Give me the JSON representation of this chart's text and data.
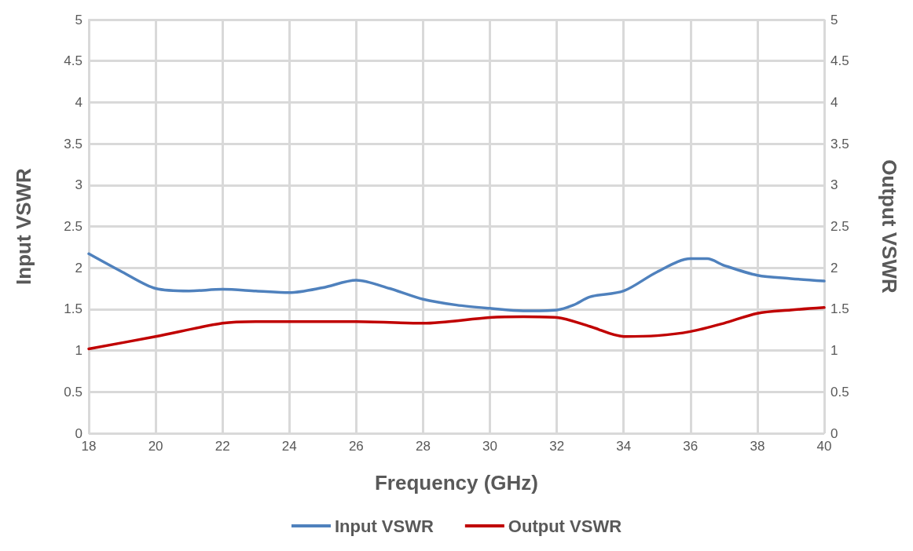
{
  "chart_data": {
    "type": "line",
    "xlabel": "Frequency (GHz)",
    "ylabel": "Input VSWR",
    "y2label": "Output VSWR",
    "series": [
      {
        "name": "Input VSWR",
        "color": "#4f81bd",
        "x": [
          18,
          19,
          20,
          21,
          22,
          23,
          24,
          25,
          26,
          27,
          28,
          29,
          30,
          31,
          32,
          32.5,
          33,
          34,
          35,
          36,
          36.5,
          37,
          38,
          39,
          40
        ],
        "values": [
          2.17,
          1.95,
          1.75,
          1.72,
          1.74,
          1.72,
          1.7,
          1.76,
          1.85,
          1.75,
          1.62,
          1.55,
          1.51,
          1.48,
          1.49,
          1.55,
          1.65,
          1.72,
          1.95,
          2.11,
          2.11,
          2.03,
          1.91,
          1.87,
          1.84
        ]
      },
      {
        "name": "Output VSWR",
        "color": "#c00000",
        "axis": "y2",
        "x": [
          18,
          20,
          22,
          23,
          24,
          26,
          28,
          30,
          31,
          32,
          33,
          34,
          35,
          36,
          37,
          38,
          39,
          40
        ],
        "values": [
          1.02,
          1.17,
          1.33,
          1.35,
          1.35,
          1.35,
          1.33,
          1.4,
          1.41,
          1.4,
          1.29,
          1.17,
          1.18,
          1.23,
          1.33,
          1.45,
          1.49,
          1.52
        ]
      }
    ],
    "xlim": [
      18,
      40
    ],
    "xticks": [
      18,
      20,
      22,
      24,
      26,
      28,
      30,
      32,
      34,
      36,
      38,
      40
    ],
    "ylim": [
      0,
      5
    ],
    "yticks": [
      0,
      0.5,
      1,
      1.5,
      2,
      2.5,
      3,
      3.5,
      4,
      4.5,
      5
    ],
    "y2lim": [
      0,
      5
    ],
    "y2ticks": [
      0,
      0.5,
      1,
      1.5,
      2,
      2.5,
      3,
      3.5,
      4,
      4.5,
      5
    ],
    "grid": true,
    "legend": "bottom",
    "marker": "none",
    "line_style": "solid"
  }
}
